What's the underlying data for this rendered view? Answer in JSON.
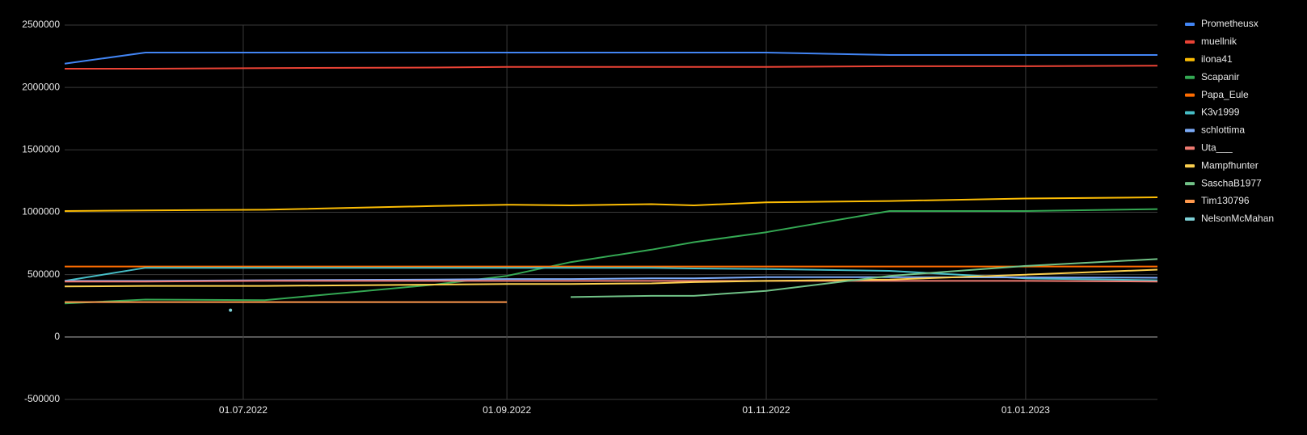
{
  "chart_data": {
    "type": "line",
    "background": "#000000",
    "grid": true,
    "legend": "right",
    "x": [
      "2022-05-20",
      "2022-06-08",
      "2022-07-06",
      "2022-08-15",
      "2022-09-01",
      "2022-09-16",
      "2022-10-05",
      "2022-10-15",
      "2022-11-01",
      "2022-11-30",
      "2023-01-01",
      "2023-02-01"
    ],
    "xlim": [
      "2022-05-20",
      "2023-02-01"
    ],
    "xticks": [
      {
        "value": "2022-07-01",
        "label": "01.07.2022"
      },
      {
        "value": "2022-09-01",
        "label": "01.09.2022"
      },
      {
        "value": "2022-11-01",
        "label": "01.11.2022"
      },
      {
        "value": "2023-01-01",
        "label": "01.01.2023"
      }
    ],
    "ylim": [
      -500000,
      2500000
    ],
    "yticks": [
      -500000,
      0,
      500000,
      1000000,
      1500000,
      2000000,
      2500000
    ],
    "series": [
      {
        "name": "Prometheusx",
        "color": "#4285f4",
        "values": [
          2190000,
          2280000,
          2280000,
          2280000,
          2280000,
          2280000,
          2280000,
          2280000,
          2280000,
          2260000,
          2260000,
          2260000
        ]
      },
      {
        "name": "muellnik",
        "color": "#ea4335",
        "values": [
          2150000,
          2150000,
          2155000,
          2160000,
          2165000,
          2165000,
          2165000,
          2165000,
          2165000,
          2170000,
          2170000,
          2175000
        ]
      },
      {
        "name": "ilona41",
        "color": "#fbbc04",
        "values": [
          1010000,
          1015000,
          1020000,
          1050000,
          1060000,
          1055000,
          1065000,
          1055000,
          1080000,
          1090000,
          1110000,
          1120000
        ]
      },
      {
        "name": "Scapanir",
        "color": "#34a853",
        "values": [
          270000,
          300000,
          295000,
          420000,
          490000,
          600000,
          700000,
          760000,
          840000,
          1010000,
          1010000,
          1025000
        ]
      },
      {
        "name": "Papa_Eule",
        "color": "#ff6d01",
        "values": [
          565000,
          565000,
          565000,
          565000,
          565000,
          565000,
          565000,
          565000,
          565000,
          565000,
          565000,
          565000
        ]
      },
      {
        "name": "K3v1999",
        "color": "#46bdc6",
        "values": [
          450000,
          555000,
          555000,
          555000,
          555000,
          555000,
          555000,
          550000,
          545000,
          530000,
          470000,
          455000
        ]
      },
      {
        "name": "schlottima",
        "color": "#7baaf7",
        "values": [
          450000,
          450000,
          455000,
          460000,
          465000,
          465000,
          470000,
          470000,
          480000,
          480000,
          478000,
          475000
        ]
      },
      {
        "name": "Uta___",
        "color": "#f07b72",
        "values": [
          445000,
          445000,
          450000,
          450000,
          450000,
          450000,
          450000,
          450000,
          450000,
          450000,
          450000,
          445000
        ]
      },
      {
        "name": "Mampfhunter",
        "color": "#fcd04f",
        "values": [
          405000,
          410000,
          410000,
          420000,
          425000,
          425000,
          430000,
          440000,
          450000,
          460000,
          500000,
          540000
        ]
      },
      {
        "name": "SaschaB1977",
        "color": "#71c287",
        "values": [
          null,
          null,
          null,
          null,
          null,
          320000,
          330000,
          330000,
          370000,
          490000,
          570000,
          625000
        ]
      },
      {
        "name": "Tim130796",
        "color": "#ff994d",
        "values": [
          280000,
          280000,
          280000,
          280000,
          280000,
          null,
          null,
          null,
          null,
          null,
          null,
          null
        ]
      },
      {
        "name": "NelsonMcMahan",
        "color": "#7ed1d7",
        "x": [
          "2022-06-28"
        ],
        "values": [
          215000
        ]
      }
    ]
  }
}
